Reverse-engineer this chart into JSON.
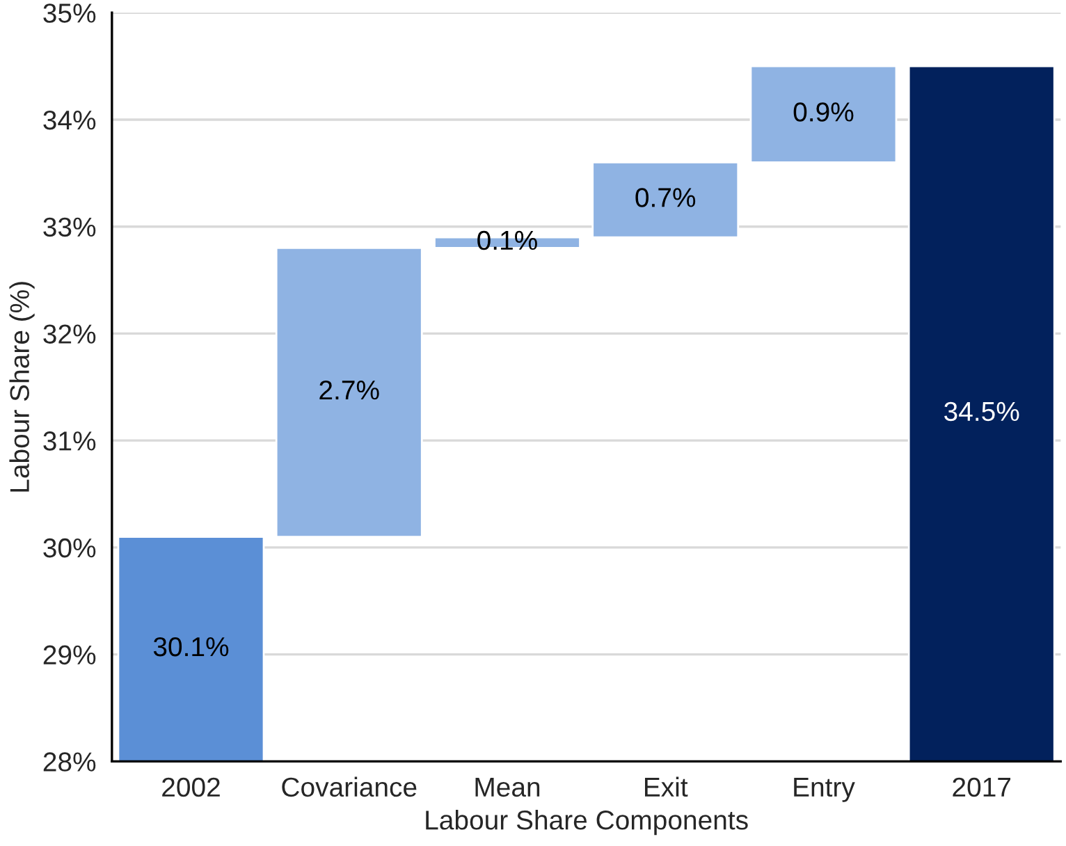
{
  "chart_data": {
    "type": "bar",
    "xlabel": "Labour Share Components",
    "ylabel": "Labour Share (%)",
    "categories": [
      "2002",
      "Covariance",
      "Mean",
      "Exit",
      "Entry",
      "2017"
    ],
    "values": [
      30.1,
      2.7,
      0.1,
      0.7,
      0.9,
      34.5
    ],
    "base": [
      null,
      30.1,
      32.8,
      32.9,
      33.6,
      null
    ],
    "colors": [
      "#5b8fd6",
      "#8fb3e3",
      "#8fb3e3",
      "#8fb3e3",
      "#8fb3e3",
      "#02215c"
    ],
    "value_labels": [
      "30.1%",
      "2.7%",
      "0.1%",
      "0.7%",
      "0.9%",
      "34.5%"
    ],
    "ylim": [
      28,
      35
    ],
    "yticks": [
      {
        "value": 28,
        "label": "28%"
      },
      {
        "value": 29,
        "label": "29%"
      },
      {
        "value": 30,
        "label": "30%"
      },
      {
        "value": 31,
        "label": "31%"
      },
      {
        "value": 32,
        "label": "32%"
      },
      {
        "value": 33,
        "label": "33%"
      },
      {
        "value": 34,
        "label": "34%"
      },
      {
        "value": 35,
        "label": "35%"
      }
    ],
    "grid": "y",
    "legend": false
  }
}
